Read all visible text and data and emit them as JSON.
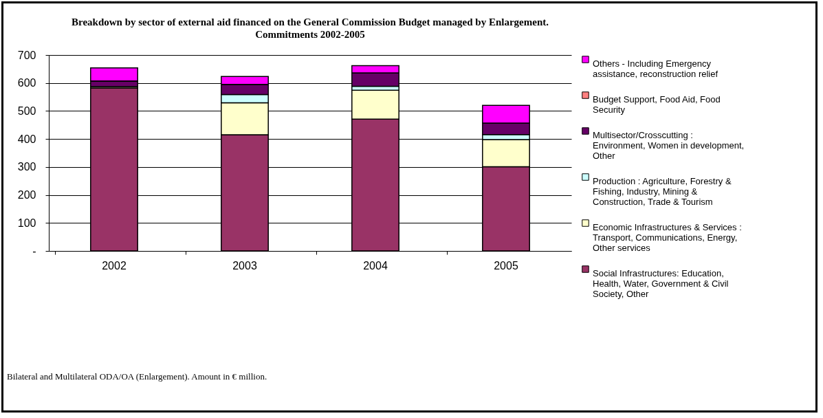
{
  "chart_data": {
    "type": "bar",
    "stacked": true,
    "title": "Breakdown by sector of external aid financed on the General Commission Budget managed by Enlargement.",
    "subtitle": "Commitments 2002-2005",
    "annotations": [
      "Bilateral and Multilateral ODA/OA (Enlargement). Amount in € million."
    ],
    "categories": [
      "2002",
      "2003",
      "2004",
      "2005"
    ],
    "series": [
      {
        "name": "Social Infrastructures: Education, Health, Water, Government & Civil Society, Other",
        "color": "#993366",
        "values": [
          582,
          415,
          471,
          301
        ]
      },
      {
        "name": "Economic Infrastructures & Services : Transport, Communications, Energy, Other services",
        "color": "#ffffcc",
        "values": [
          5,
          114,
          103,
          97
        ]
      },
      {
        "name": "Production : Agriculture, Forestry & Fishing, Industry, Mining & Construction, Trade & Tourism",
        "color": "#ccffff",
        "values": [
          null,
          30,
          14,
          18
        ]
      },
      {
        "name": "Multisector/Crosscutting : Environment, Women in development, Other",
        "color": "#660066",
        "values": [
          20,
          36,
          48,
          41
        ]
      },
      {
        "name": "Budget Support, Food Aid, Food Security",
        "color": "#ff8080",
        "values": [
          0,
          0,
          0,
          0
        ]
      },
      {
        "name": "Others - Including Emergency assistance, reconstruction relief",
        "color": "#ff00ff",
        "values": [
          47,
          28,
          26,
          63
        ]
      }
    ],
    "ylim": [
      0,
      700
    ],
    "yticks": [
      {
        "value": 0,
        "label": "-"
      },
      100,
      200,
      300,
      400,
      500,
      600,
      700
    ],
    "grid": "y",
    "legend": "right"
  }
}
